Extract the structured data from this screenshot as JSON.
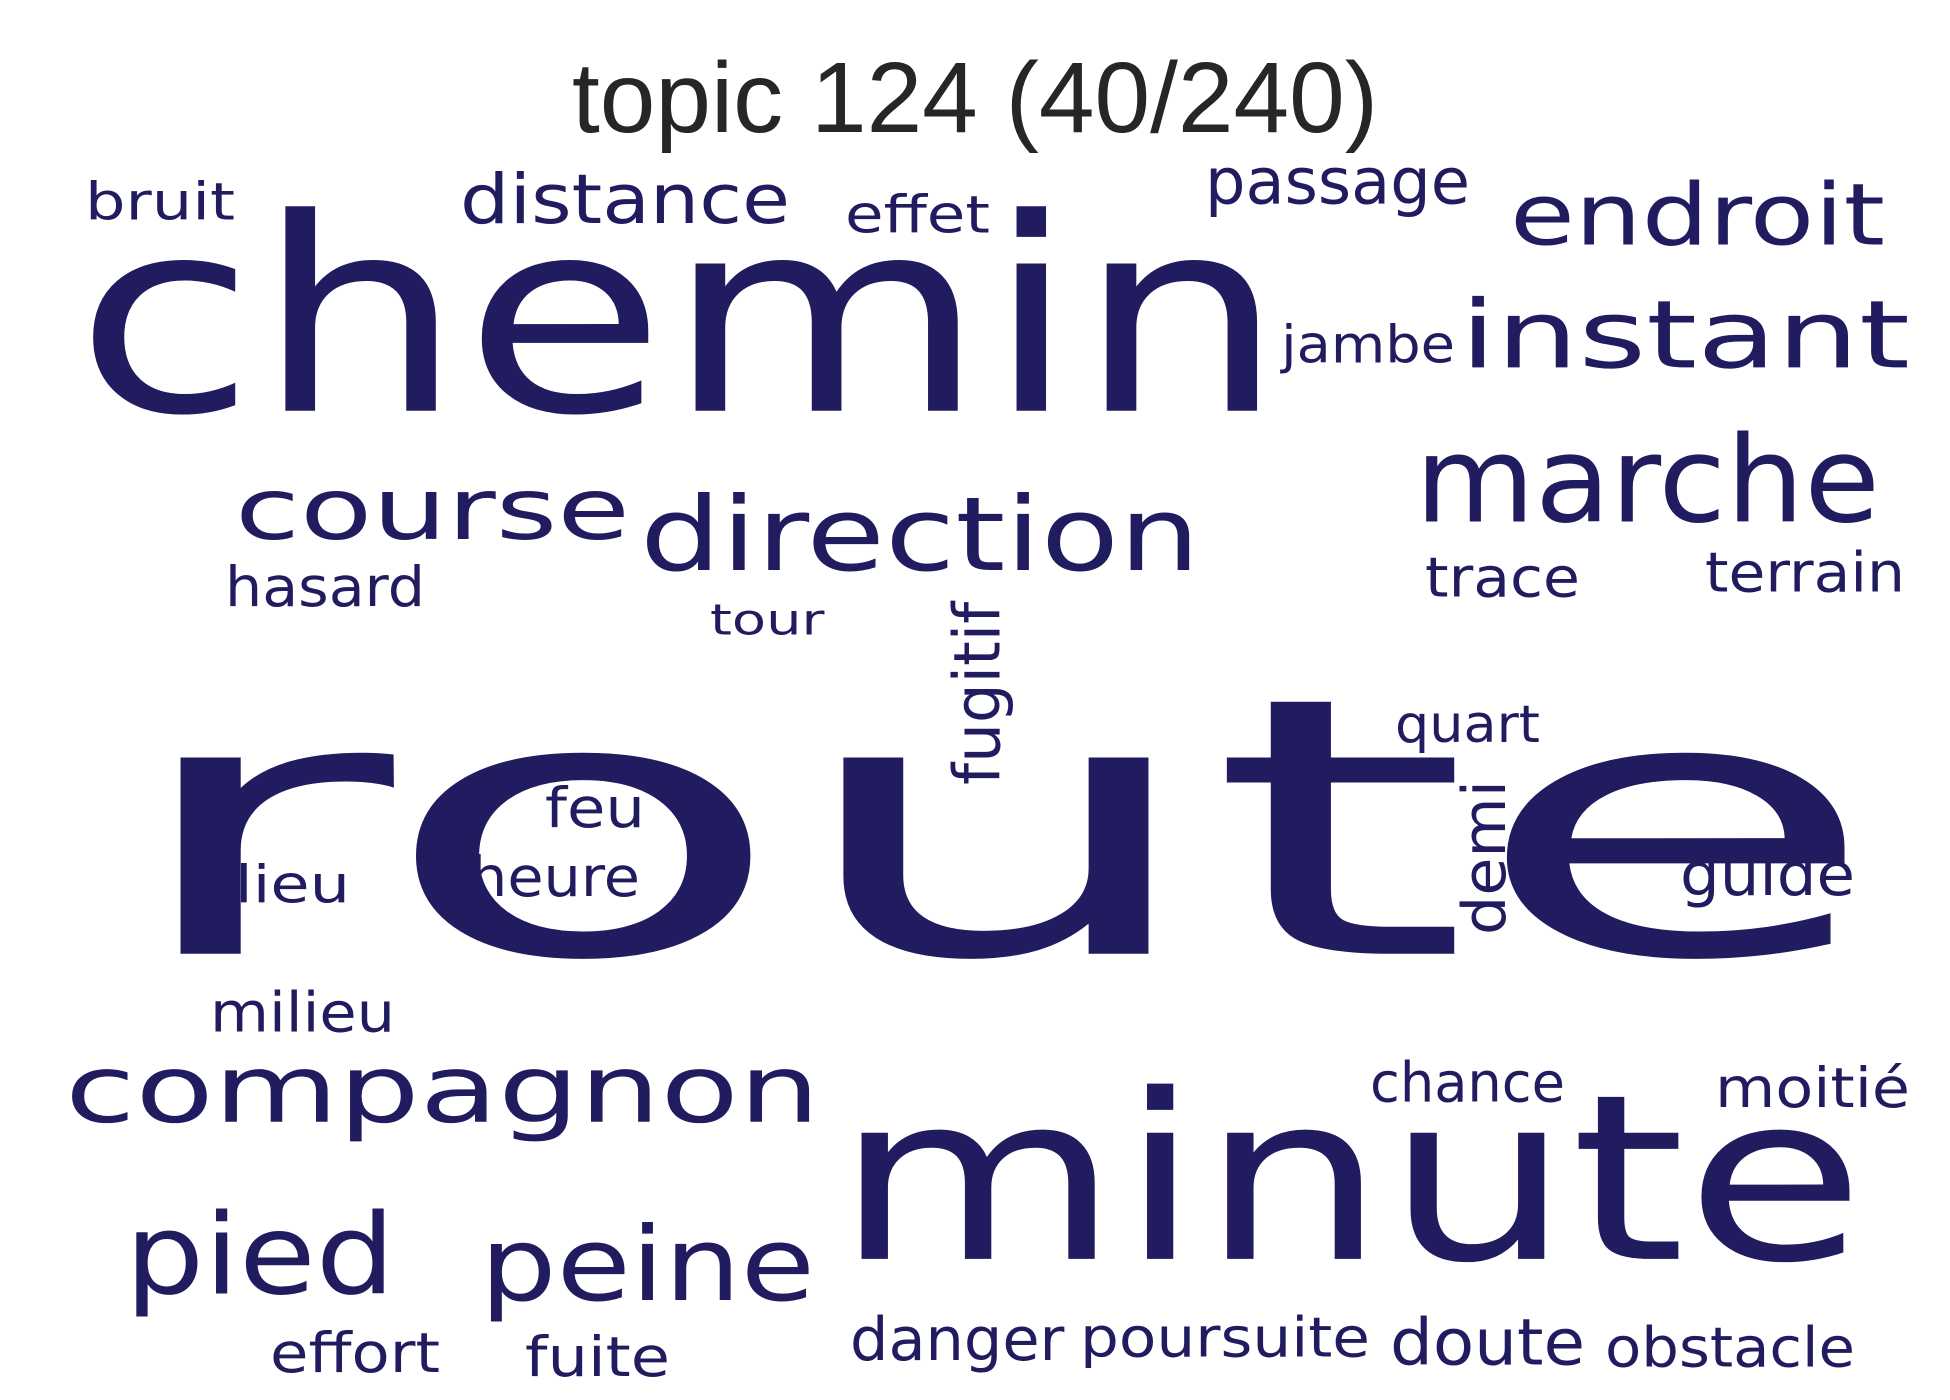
{
  "title": "topic 124 (40/240)",
  "word_color": "#211c5f",
  "words": [
    {
      "text": "route",
      "vertical": false
    },
    {
      "text": "chemin",
      "vertical": false
    },
    {
      "text": "minute",
      "vertical": false
    },
    {
      "text": "marche",
      "vertical": false
    },
    {
      "text": "direction",
      "vertical": false
    },
    {
      "text": "compagnon",
      "vertical": false
    },
    {
      "text": "instant",
      "vertical": false
    },
    {
      "text": "endroit",
      "vertical": false
    },
    {
      "text": "course",
      "vertical": false
    },
    {
      "text": "peine",
      "vertical": false
    },
    {
      "text": "pied",
      "vertical": false
    },
    {
      "text": "distance",
      "vertical": false
    },
    {
      "text": "doute",
      "vertical": false
    },
    {
      "text": "passage",
      "vertical": false
    },
    {
      "text": "poursuite",
      "vertical": false
    },
    {
      "text": "danger",
      "vertical": false
    },
    {
      "text": "obstacle",
      "vertical": false
    },
    {
      "text": "fugitif",
      "vertical": true
    },
    {
      "text": "terrain",
      "vertical": false
    },
    {
      "text": "trace",
      "vertical": false
    },
    {
      "text": "hasard",
      "vertical": false
    },
    {
      "text": "effort",
      "vertical": false
    },
    {
      "text": "chance",
      "vertical": false
    },
    {
      "text": "moitié",
      "vertical": false
    },
    {
      "text": "guide",
      "vertical": false
    },
    {
      "text": "demi",
      "vertical": true
    },
    {
      "text": "milieu",
      "vertical": false
    },
    {
      "text": "heure",
      "vertical": false
    },
    {
      "text": "jambe",
      "vertical": false
    },
    {
      "text": "fuite",
      "vertical": false
    },
    {
      "text": "bruit",
      "vertical": false
    },
    {
      "text": "effet",
      "vertical": false
    },
    {
      "text": "quart",
      "vertical": false
    },
    {
      "text": "lieu",
      "vertical": false
    },
    {
      "text": "feu",
      "vertical": false
    },
    {
      "text": "tour",
      "vertical": false
    }
  ]
}
